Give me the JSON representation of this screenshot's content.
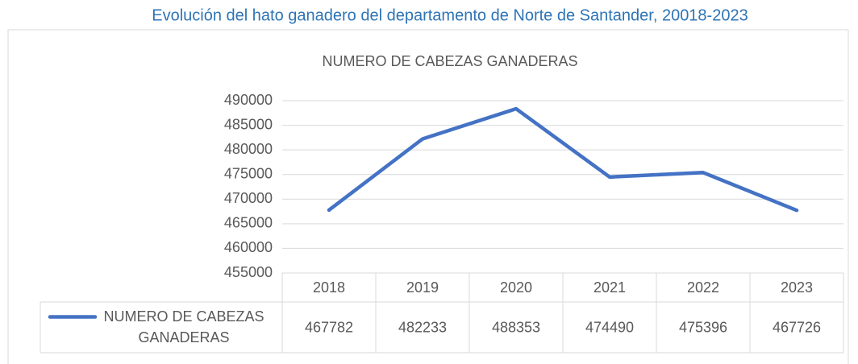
{
  "page_title": "Evolución del hato ganadero del departamento de Norte de Santander, 20018-2023",
  "chart_data": {
    "type": "line",
    "title": "NUMERO DE CABEZAS GANADERAS",
    "categories": [
      "2018",
      "2019",
      "2020",
      "2021",
      "2022",
      "2023"
    ],
    "series": [
      {
        "name": "NUMERO DE CABEZAS GANADERAS",
        "color": "#4472c4",
        "values": [
          467782,
          482233,
          488353,
          474490,
          475396,
          467726
        ]
      }
    ],
    "ylim": [
      455000,
      490000
    ],
    "yticks": [
      455000,
      460000,
      465000,
      470000,
      475000,
      480000,
      485000,
      490000
    ],
    "grid": true,
    "legend": "bottom",
    "data_table": true
  }
}
